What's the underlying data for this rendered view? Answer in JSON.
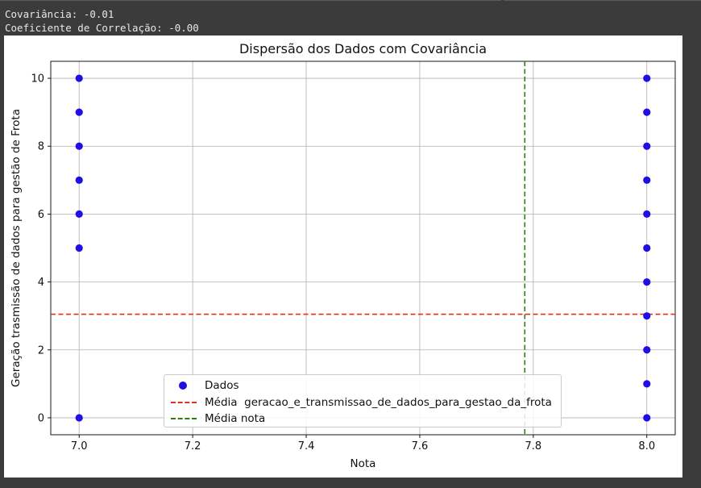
{
  "output": {
    "line1": "Covariância: -0.01",
    "line2": "Coeficiente de Correlação: -0.00"
  },
  "chart_data": {
    "type": "scatter",
    "title": "Dispersão dos Dados com Covariância",
    "xlabel": "Nota",
    "ylabel": "Geração trasmissão de dados para gestão de Frota",
    "xlim": [
      6.95,
      8.05
    ],
    "ylim": [
      -0.5,
      10.5
    ],
    "xticks": [
      "7.0",
      "7.2",
      "7.4",
      "7.6",
      "7.8",
      "8.0"
    ],
    "yticks": [
      "0",
      "2",
      "4",
      "6",
      "8",
      "10"
    ],
    "grid": true,
    "legend_position": "lower center",
    "series": [
      {
        "name": "Dados",
        "color": "#1f0fe6",
        "points": [
          {
            "x": 7.0,
            "y": 10
          },
          {
            "x": 7.0,
            "y": 9
          },
          {
            "x": 7.0,
            "y": 8
          },
          {
            "x": 7.0,
            "y": 7
          },
          {
            "x": 7.0,
            "y": 6
          },
          {
            "x": 7.0,
            "y": 5
          },
          {
            "x": 7.0,
            "y": 0
          },
          {
            "x": 8.0,
            "y": 10
          },
          {
            "x": 8.0,
            "y": 9
          },
          {
            "x": 8.0,
            "y": 8
          },
          {
            "x": 8.0,
            "y": 7
          },
          {
            "x": 8.0,
            "y": 6
          },
          {
            "x": 8.0,
            "y": 5
          },
          {
            "x": 8.0,
            "y": 4
          },
          {
            "x": 8.0,
            "y": 3
          },
          {
            "x": 8.0,
            "y": 2
          },
          {
            "x": 8.0,
            "y": 1
          },
          {
            "x": 8.0,
            "y": 0
          }
        ]
      }
    ],
    "hlines": [
      {
        "name": "Média  geracao_e_transmissao_de_dados_para_gestao_da_frota",
        "y": 3.05,
        "color": "#e0301e",
        "style": "dashed"
      }
    ],
    "vlines": [
      {
        "name": "Média nota",
        "x": 7.785,
        "color": "#2e7d12",
        "style": "dashed"
      }
    ]
  }
}
